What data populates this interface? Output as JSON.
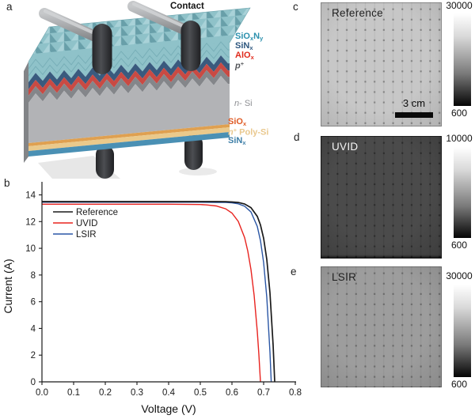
{
  "figure": {
    "panel_labels": {
      "a": "a",
      "b": "b",
      "c": "c",
      "d": "d",
      "e": "e"
    }
  },
  "schematic": {
    "contact_label": "Contact",
    "layers_top": [
      {
        "id": "SiOxNy",
        "parts": [
          {
            "t": "SiO"
          },
          {
            "t": "x",
            "s": "sub"
          },
          {
            "t": "N"
          },
          {
            "t": "y",
            "s": "sub"
          }
        ],
        "label_color": "#2b90ad",
        "fill": "#8fc2c9"
      },
      {
        "id": "SiNx",
        "parts": [
          {
            "t": "SiN"
          },
          {
            "t": "x",
            "s": "sub"
          }
        ],
        "label_color": "#2d567e",
        "fill": "#3a5a7e"
      },
      {
        "id": "AlOx",
        "parts": [
          {
            "t": "AlO"
          },
          {
            "t": "x",
            "s": "sub"
          }
        ],
        "label_color": "#e02b1d",
        "fill": "#c94a43"
      },
      {
        "id": "p+",
        "parts": [
          {
            "t": "p",
            "s": "i"
          },
          {
            "t": "+",
            "s": "sup"
          }
        ],
        "label_color": "#54565a",
        "fill": "#84868a"
      }
    ],
    "bulk": {
      "id": "n-Si",
      "parts": [
        {
          "t": "n",
          "s": "i"
        },
        {
          "t": "- Si"
        }
      ],
      "label_color": "#8f9094",
      "fill": "#b2b3b6"
    },
    "layers_bottom": [
      {
        "id": "SiOx",
        "parts": [
          {
            "t": "SiO"
          },
          {
            "t": "x",
            "s": "sub"
          }
        ],
        "label_color": "#df5a24",
        "fill": "#dfa050"
      },
      {
        "id": "n+Poly-Si",
        "parts": [
          {
            "t": "n",
            "s": "i"
          },
          {
            "t": "+",
            "s": "sup"
          },
          {
            "t": " Poly-Si"
          }
        ],
        "label_color": "#e9c88e",
        "fill": "#eac98b"
      },
      {
        "id": "SiNx-rear",
        "parts": [
          {
            "t": "SiN"
          },
          {
            "t": "x",
            "s": "sub"
          }
        ],
        "label_color": "#3d7ea7",
        "fill": "#4a90b4"
      }
    ]
  },
  "chart_data": {
    "type": "line",
    "xlabel": "Voltage (V)",
    "ylabel": "Current (A)",
    "xlim": [
      0,
      0.8
    ],
    "ylim": [
      0,
      14.8
    ],
    "xticks": [
      "0.0",
      "0.1",
      "0.2",
      "0.3",
      "0.4",
      "0.5",
      "0.6",
      "0.7",
      "0.8"
    ],
    "yticks": [
      "0",
      "2",
      "4",
      "6",
      "8",
      "10",
      "12",
      "14"
    ],
    "grid": false,
    "legend_position": "upper-left",
    "series": [
      {
        "name": "Reference",
        "color": "#1a1a1a",
        "isc_A": 13.5,
        "voc_V": 0.735,
        "points": [
          [
            0,
            13.5
          ],
          [
            0.1,
            13.5
          ],
          [
            0.2,
            13.5
          ],
          [
            0.3,
            13.5
          ],
          [
            0.4,
            13.5
          ],
          [
            0.5,
            13.5
          ],
          [
            0.55,
            13.5
          ],
          [
            0.58,
            13.49
          ],
          [
            0.6,
            13.47
          ],
          [
            0.62,
            13.43
          ],
          [
            0.64,
            13.32
          ],
          [
            0.66,
            13.05
          ],
          [
            0.68,
            12.39
          ],
          [
            0.69,
            11.75
          ],
          [
            0.7,
            10.75
          ],
          [
            0.71,
            9.17
          ],
          [
            0.72,
            6.67
          ],
          [
            0.73,
            2.74
          ],
          [
            0.735,
            0
          ]
        ]
      },
      {
        "name": "UVID",
        "color": "#e8231f",
        "isc_A": 13.3,
        "voc_V": 0.69,
        "points": [
          [
            0,
            13.3
          ],
          [
            0.1,
            13.3
          ],
          [
            0.2,
            13.3
          ],
          [
            0.3,
            13.3
          ],
          [
            0.4,
            13.3
          ],
          [
            0.5,
            13.28
          ],
          [
            0.52,
            13.25
          ],
          [
            0.55,
            13.17
          ],
          [
            0.58,
            12.96
          ],
          [
            0.6,
            12.64
          ],
          [
            0.62,
            12.01
          ],
          [
            0.64,
            10.8
          ],
          [
            0.65,
            9.79
          ],
          [
            0.66,
            8.41
          ],
          [
            0.67,
            6.48
          ],
          [
            0.68,
            3.77
          ],
          [
            0.685,
            2.04
          ],
          [
            0.69,
            0
          ]
        ]
      },
      {
        "name": "LSIR",
        "color": "#2a56a5",
        "isc_A": 13.45,
        "voc_V": 0.724,
        "points": [
          [
            0,
            13.45
          ],
          [
            0.1,
            13.45
          ],
          [
            0.2,
            13.45
          ],
          [
            0.3,
            13.45
          ],
          [
            0.4,
            13.45
          ],
          [
            0.5,
            13.45
          ],
          [
            0.55,
            13.44
          ],
          [
            0.58,
            13.43
          ],
          [
            0.6,
            13.4
          ],
          [
            0.62,
            13.33
          ],
          [
            0.64,
            13.15
          ],
          [
            0.66,
            12.72
          ],
          [
            0.68,
            11.63
          ],
          [
            0.69,
            10.58
          ],
          [
            0.7,
            8.93
          ],
          [
            0.71,
            6.33
          ],
          [
            0.72,
            2.22
          ],
          [
            0.724,
            0
          ]
        ]
      }
    ]
  },
  "pl_images": [
    {
      "panel": "c",
      "label": "Reference",
      "cbar_max": "30000",
      "cbar_min": "600",
      "scale_bar_label": "3 cm",
      "base": "#c7c7c7",
      "edge": "#b2b2b2",
      "text_color": "#1f1f1f"
    },
    {
      "panel": "d",
      "label": "UVID",
      "cbar_max": "10000",
      "cbar_min": "600",
      "base": "#4b4b4b",
      "edge": "#3c3c3c",
      "text_color": "#f5f5f5"
    },
    {
      "panel": "e",
      "label": "LSIR",
      "cbar_max": "30000",
      "cbar_min": "600",
      "base": "#9d9d9d",
      "edge": "#8a8a8a",
      "text_color": "#1f1f1f"
    }
  ]
}
